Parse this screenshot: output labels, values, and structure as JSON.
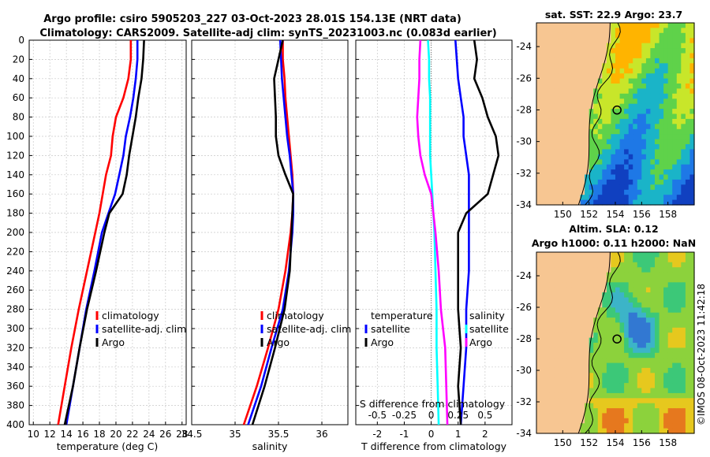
{
  "figure": {
    "title_line1": "Argo profile: csiro 5905203_227 03-Oct-2023 28.01S 154.13E (NRT data)",
    "title_line2": "Climatology: CARS2009. Satellite-adj clim: synTS_20231003.nc (0.083d earlier)",
    "watermark": "©IMOS 08-Oct-2023 11:42:18"
  },
  "colors": {
    "climatology": "#ff0000",
    "satellite": "#0000ff",
    "argo": "#000000",
    "s_diff": "#00ffff",
    "t_diff": "#ff00ff",
    "land": "#f7c692"
  },
  "depth_axis": {
    "ticks": [
      0,
      20,
      40,
      60,
      80,
      100,
      120,
      140,
      160,
      180,
      200,
      220,
      240,
      260,
      280,
      300,
      320,
      340,
      360,
      380,
      400
    ]
  },
  "chart_data": [
    {
      "name": "temperature-profile",
      "type": "line",
      "xlabel": "temperature (deg C)",
      "ylabel": "depth",
      "xlim": [
        9.5,
        28.5
      ],
      "ylim": [
        400,
        0
      ],
      "xticks": [
        10,
        12,
        14,
        16,
        18,
        20,
        22,
        24,
        26,
        28
      ],
      "depth": [
        0,
        20,
        40,
        60,
        80,
        100,
        120,
        140,
        160,
        180,
        200,
        240,
        280,
        320,
        360,
        400
      ],
      "series": [
        {
          "name": "climatology",
          "color": "#ff0000",
          "values": [
            21.8,
            21.8,
            21.5,
            20.9,
            20.0,
            19.6,
            19.4,
            18.8,
            18.4,
            18.0,
            17.5,
            16.5,
            15.5,
            14.6,
            13.8,
            13.0
          ]
        },
        {
          "name": "satellite-adj. clim",
          "color": "#0000ff",
          "values": [
            22.6,
            22.6,
            22.4,
            22.1,
            21.7,
            21.2,
            20.9,
            20.4,
            19.9,
            19.1,
            18.3,
            17.4,
            16.4,
            15.6,
            14.8,
            14.0
          ]
        },
        {
          "name": "Argo",
          "color": "#000000",
          "values": [
            23.4,
            23.3,
            23.1,
            22.7,
            22.4,
            22.0,
            21.6,
            21.3,
            20.8,
            19.2,
            18.6,
            17.6,
            16.5,
            15.6,
            14.8,
            13.8
          ]
        }
      ],
      "legend": [
        "climatology",
        "satellite-adj. clim",
        "Argo"
      ]
    },
    {
      "name": "salinity-profile",
      "type": "line",
      "xlabel": "salinity",
      "xlim": [
        34.5,
        36.3
      ],
      "ylim": [
        400,
        0
      ],
      "xticks": [
        34.5,
        35,
        35.5,
        36
      ],
      "xticklabels": [
        "34.5",
        "35",
        "35.5",
        "36"
      ],
      "depth": [
        0,
        20,
        40,
        60,
        80,
        100,
        120,
        140,
        160,
        180,
        200,
        240,
        280,
        320,
        360,
        400
      ],
      "series": [
        {
          "name": "climatology",
          "color": "#ff0000",
          "values": [
            35.55,
            35.55,
            35.57,
            35.58,
            35.6,
            35.62,
            35.64,
            35.66,
            35.67,
            35.66,
            35.64,
            35.58,
            35.5,
            35.38,
            35.25,
            35.1
          ]
        },
        {
          "name": "satellite-adj. clim",
          "color": "#0000ff",
          "values": [
            35.52,
            35.53,
            35.54,
            35.56,
            35.58,
            35.6,
            35.63,
            35.65,
            35.67,
            35.67,
            35.66,
            35.62,
            35.55,
            35.42,
            35.3,
            35.15
          ]
        },
        {
          "name": "Argo",
          "color": "#000000",
          "values": [
            35.55,
            35.5,
            35.45,
            35.46,
            35.47,
            35.47,
            35.5,
            35.58,
            35.67,
            35.66,
            35.65,
            35.63,
            35.57,
            35.46,
            35.34,
            35.2
          ]
        }
      ],
      "legend": [
        "climatology",
        "satellite-adj. clim",
        "Argo"
      ]
    },
    {
      "name": "difference-profile",
      "type": "line",
      "xlabel": "T difference from climatology",
      "secondary_xlabel": "S difference from climatology",
      "xlim": [
        -2.8,
        3.0
      ],
      "ylim": [
        400,
        0
      ],
      "xticks": [
        -2,
        -1,
        0,
        1,
        2
      ],
      "secondary_xticks": [
        -0.5,
        -0.25,
        0,
        0.25,
        0.5
      ],
      "secondary_xticklabels": [
        "-0.5",
        "-0.25",
        "0",
        "0.25",
        "0.5"
      ],
      "depth": [
        0,
        20,
        40,
        60,
        80,
        100,
        120,
        140,
        160,
        180,
        200,
        240,
        280,
        320,
        360,
        400
      ],
      "series": [
        {
          "name": "temperature satellite",
          "color": "#0000ff",
          "values": [
            0.9,
            0.95,
            1.0,
            1.1,
            1.2,
            1.2,
            1.3,
            1.4,
            1.4,
            1.4,
            1.4,
            1.4,
            1.3,
            1.3,
            1.2,
            1.1
          ]
        },
        {
          "name": "temperature Argo",
          "color": "#000000",
          "values": [
            1.6,
            1.7,
            1.6,
            1.9,
            2.1,
            2.4,
            2.5,
            2.3,
            2.1,
            1.3,
            1.0,
            1.0,
            1.0,
            1.1,
            1.0,
            1.1
          ]
        },
        {
          "name": "salinity satellite",
          "color": "#00ffff",
          "values": [
            -0.03,
            -0.02,
            -0.02,
            -0.01,
            -0.01,
            -0.01,
            -0.01,
            0.0,
            0.01,
            0.02,
            0.03,
            0.04,
            0.05,
            0.05,
            0.06,
            0.07
          ]
        },
        {
          "name": "salinity Argo",
          "color": "#ff00ff",
          "values": [
            -0.1,
            -0.11,
            -0.11,
            -0.12,
            -0.13,
            -0.12,
            -0.1,
            -0.06,
            0.0,
            0.02,
            0.04,
            0.07,
            0.09,
            0.13,
            0.14,
            0.15
          ]
        }
      ],
      "legend_temperature": {
        "title": "temperature",
        "items": [
          "satellite",
          "Argo"
        ]
      },
      "legend_salinity": {
        "title": "salinity",
        "items": [
          "satellite",
          "Argo"
        ]
      }
    },
    {
      "name": "sst-map",
      "type": "heatmap",
      "title": "sat. SST: 22.9 Argo: 23.7",
      "xlim": [
        148,
        160
      ],
      "ylim": [
        -34,
        -22.5
      ],
      "xticks": [
        150,
        152,
        154,
        156,
        158
      ],
      "yticks": [
        -24,
        -26,
        -28,
        -30,
        -32,
        -34
      ],
      "profile_lon": 154.13,
      "profile_lat": -28.01
    },
    {
      "name": "sla-map",
      "type": "heatmap",
      "title_line1": "Altim. SLA: 0.12",
      "title_line2": "Argo h1000: 0.11 h2000: NaN",
      "xlim": [
        148,
        160
      ],
      "ylim": [
        -34,
        -22.5
      ],
      "xticks": [
        150,
        152,
        154,
        156,
        158
      ],
      "yticks": [
        -24,
        -26,
        -28,
        -30,
        -32,
        -34
      ],
      "profile_lon": 154.13,
      "profile_lat": -28.01
    }
  ]
}
